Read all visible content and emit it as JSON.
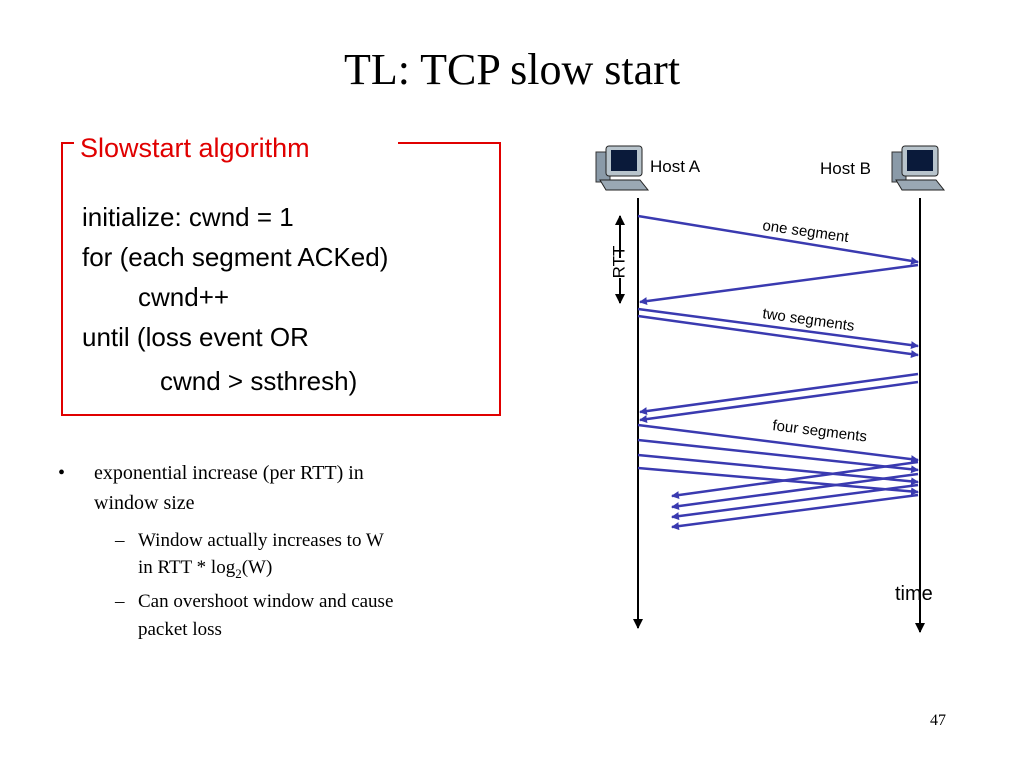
{
  "title": "TL: TCP slow start",
  "box": {
    "title": "Slowstart algorithm",
    "lines": [
      "initialize: cwnd = 1",
      "for (each segment ACKed)",
      "cwnd++",
      "until (loss event OR",
      "cwnd > ssthresh)"
    ]
  },
  "bullets": [
    {
      "text": [
        "exponential increase (per RTT) in",
        "window size"
      ],
      "sub": [
        {
          "lines": [
            "Window actually increases to W"
          ],
          "before": "in RTT * log",
          "subscript": "2",
          "after": "(W)"
        },
        {
          "lines": [
            "Can overshoot window and cause",
            "packet loss"
          ]
        }
      ]
    }
  ],
  "diagram": {
    "host_a": "Host A",
    "host_b": "Host B",
    "rtt": "RTT",
    "labels": [
      "one segment",
      "two segments",
      "four segments"
    ],
    "time": "time"
  },
  "page_number": "47"
}
